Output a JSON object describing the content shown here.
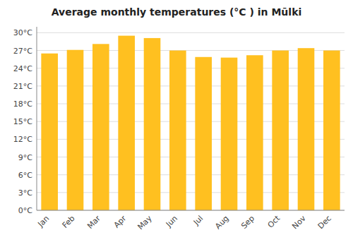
{
  "chart_data": {
    "type": "bar",
    "title": "Average monthly temperatures (°C ) in Mūlki",
    "categories": [
      "Jan",
      "Feb",
      "Mar",
      "Apr",
      "May",
      "Jun",
      "Jul",
      "Aug",
      "Sep",
      "Oct",
      "Nov",
      "Dec"
    ],
    "values": [
      26.5,
      27.1,
      28.1,
      29.5,
      29.1,
      27.0,
      25.9,
      25.8,
      26.2,
      27.0,
      27.4,
      27.0
    ],
    "color": "#FFC020",
    "ylim": [
      0,
      31
    ],
    "yticks": [
      {
        "value": 0,
        "label": "0°C"
      },
      {
        "value": 3,
        "label": "3°C"
      },
      {
        "value": 6,
        "label": "6°C"
      },
      {
        "value": 9,
        "label": "9°C"
      },
      {
        "value": 12,
        "label": "12°C"
      },
      {
        "value": 15,
        "label": "15°C"
      },
      {
        "value": 18,
        "label": "18°C"
      },
      {
        "value": 21,
        "label": "21°C"
      },
      {
        "value": 24,
        "label": "24°C"
      },
      {
        "value": 27,
        "label": "27°C"
      },
      {
        "value": 30,
        "label": "30°C"
      }
    ],
    "grid": true
  }
}
